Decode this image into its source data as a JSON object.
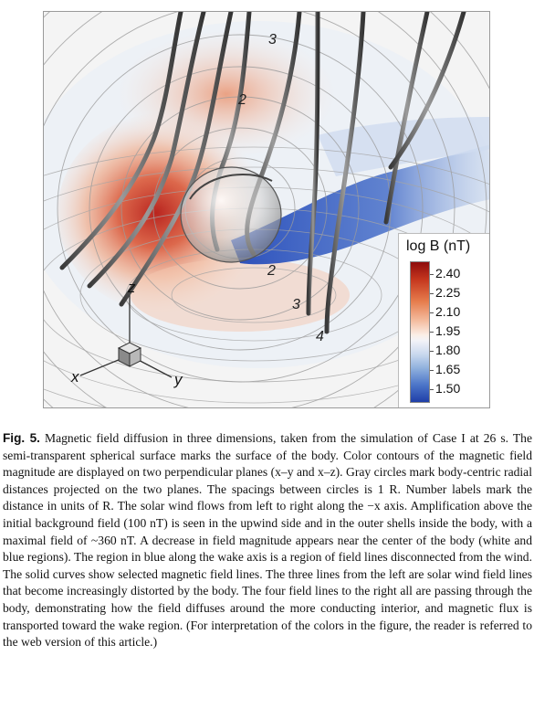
{
  "figure": {
    "radial_labels": [
      "3",
      "2",
      "2",
      "3",
      "4"
    ],
    "axis_labels": {
      "z": "z",
      "x": "x",
      "y": "y"
    },
    "legend": {
      "title": "log B (nT)",
      "ticks": [
        "2.40",
        "2.25",
        "2.10",
        "1.95",
        "1.80",
        "1.65",
        "1.50"
      ]
    },
    "colors": {
      "strong": "#b61a14",
      "neutral": "#f5f5f5",
      "weak": "#2147b8"
    }
  },
  "caption": {
    "label": "Fig. 5.",
    "text": "Magnetic field diffusion in three dimensions, taken from the simulation of Case I at 26 s. The semi-transparent spherical surface marks the surface of the body. Color contours of the magnetic field magnitude are displayed on two perpendicular planes (x–y and x–z). Gray circles mark body-centric radial distances projected on the two planes. The spacings between circles is 1 R. Number labels mark the distance in units of R. The solar wind flows from left to right along the −x axis. Amplification above the initial background field (100 nT) is seen in the upwind side and in the outer shells inside the body, with a maximal field of ~360 nT. A decrease in field magnitude appears near the center of the body (white and blue regions). The region in blue along the wake axis is a region of field lines disconnected from the wind. The solid curves show selected magnetic field lines. The three lines from the left are solar wind field lines that become increasingly distorted by the body. The four field lines to the right all are passing through the body, demonstrating how the field diffuses around the more conducting interior, and magnetic flux is transported toward the wake region. (For interpretation of the colors in the figure, the reader is referred to the web version of this article.)"
  }
}
